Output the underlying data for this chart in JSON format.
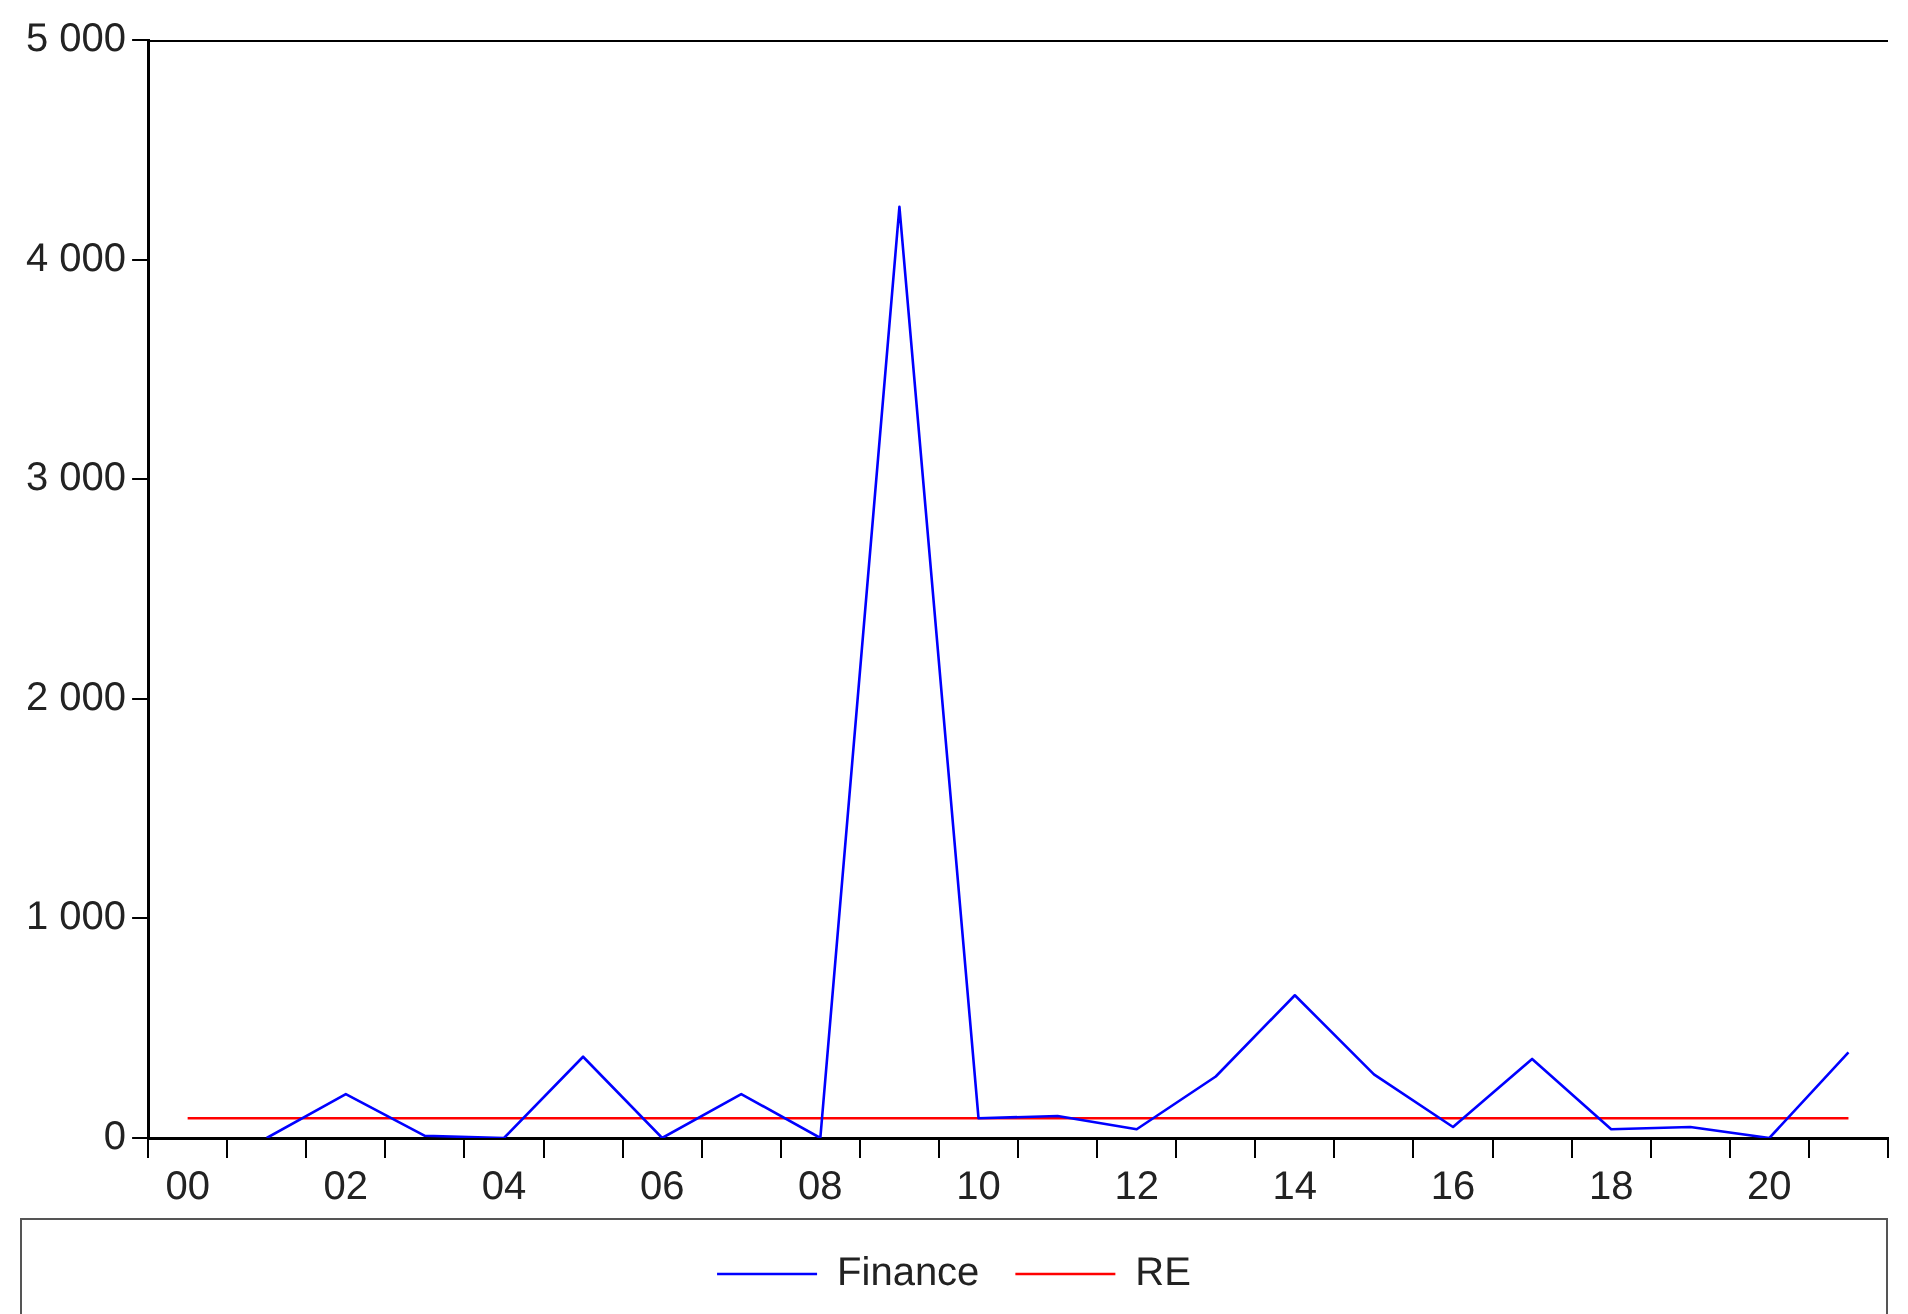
{
  "chart_data": {
    "type": "line",
    "categories": [
      "00",
      null,
      "02",
      null,
      "04",
      null,
      "06",
      null,
      "08",
      null,
      "10",
      null,
      "12",
      null,
      "14",
      null,
      "16",
      null,
      "18",
      null,
      "20",
      null
    ],
    "series": [
      {
        "name": "Finance",
        "color": "#0000ff",
        "values": [
          null,
          0,
          200,
          10,
          0,
          370,
          0,
          200,
          0,
          4240,
          90,
          100,
          40,
          280,
          650,
          290,
          50,
          360,
          40,
          50,
          0,
          390
        ]
      },
      {
        "name": "RE",
        "color": "#ff0000",
        "values": [
          90,
          90,
          90,
          90,
          90,
          90,
          90,
          90,
          90,
          90,
          90,
          90,
          90,
          90,
          90,
          90,
          90,
          90,
          90,
          90,
          90,
          90
        ]
      }
    ],
    "ylim": [
      0,
      5000
    ],
    "yticks": [
      {
        "value": 0,
        "label": "0"
      },
      {
        "value": 1000,
        "label": "1 000"
      },
      {
        "value": 2000,
        "label": "2 000"
      },
      {
        "value": 3000,
        "label": "3 000"
      },
      {
        "value": 4000,
        "label": "4 000"
      },
      {
        "value": 5000,
        "label": "5 000"
      }
    ],
    "grid": false,
    "legend": "bottom",
    "marker": "none",
    "line_style": "solid"
  }
}
